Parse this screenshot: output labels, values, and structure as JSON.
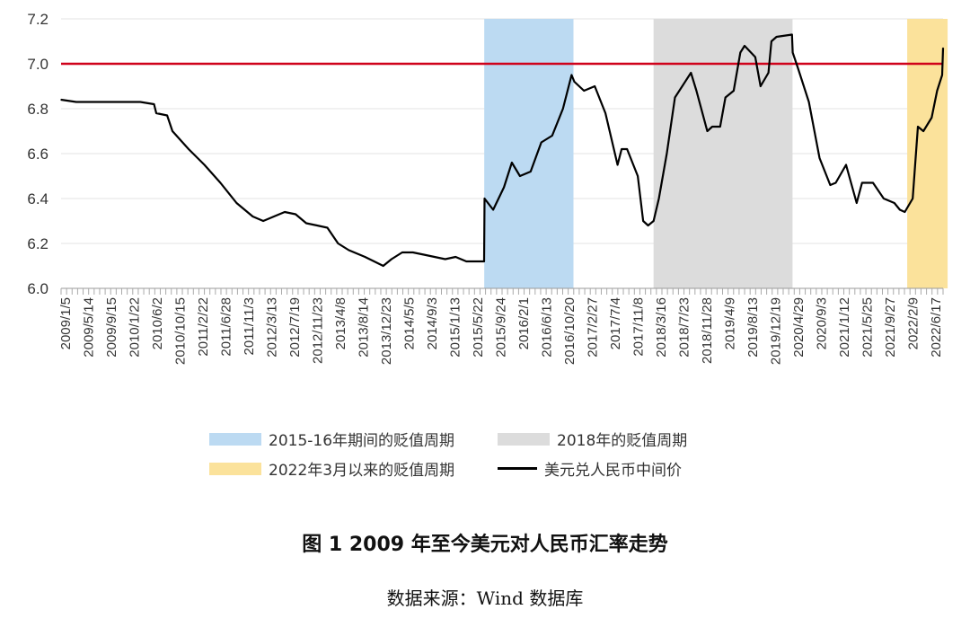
{
  "chart_data": {
    "type": "line",
    "title": "",
    "xlabel": "",
    "ylabel": "",
    "ylim": [
      6.0,
      7.2
    ],
    "y_ticks": [
      "6.0",
      "6.2",
      "6.4",
      "6.6",
      "6.8",
      "7.0",
      "7.2"
    ],
    "x_tick_labels": [
      "2009/1/5",
      "2009/5/14",
      "2009/9/15",
      "2010/1/22",
      "2010/6/2",
      "2010/10/15",
      "2011/2/22",
      "2011/6/28",
      "2011/11/3",
      "2012/3/13",
      "2012/7/19",
      "2012/11/23",
      "2013/4/8",
      "2013/8/14",
      "2013/12/23",
      "2014/5/5",
      "2014/9/3",
      "2015/1/13",
      "2015/5/22",
      "2015/9/24",
      "2016/2/1",
      "2016/6/13",
      "2016/10/20",
      "2017/2/27",
      "2017/7/4",
      "2017/11/8",
      "2018/3/16",
      "2018/7/23",
      "2018/11/28",
      "2019/4/9",
      "2019/8/13",
      "2019/12/19",
      "2020/4/29",
      "2020/9/3",
      "2021/1/12",
      "2021/5/25",
      "2021/9/27",
      "2022/2/9",
      "2022/6/17"
    ],
    "grid": true,
    "reference_line": {
      "value": 7.0,
      "color": "#d0021b"
    },
    "shaded_periods": [
      {
        "name": "2015-16年期间的贬值周期",
        "start": "2015/8/11",
        "end": "2016/12/31",
        "color": "#bcdaf2"
      },
      {
        "name": "2018年的贬值周期",
        "start": "2018/4/1",
        "end": "2020/5/31",
        "color": "#dcdcdc"
      },
      {
        "name": "2022年3月以来的贬值周期",
        "start": "2022/3/15",
        "end": "2022/10/31",
        "color": "#fbe29b"
      }
    ],
    "series": [
      {
        "name": "美元兑人民币中间价",
        "color": "#000000",
        "x": [
          "2009/1/5",
          "2009/4/1",
          "2009/7/1",
          "2009/10/1",
          "2010/1/1",
          "2010/4/1",
          "2010/6/18",
          "2010/7/1",
          "2010/9/1",
          "2010/10/1",
          "2011/1/1",
          "2011/4/1",
          "2011/7/1",
          "2011/10/1",
          "2012/1/1",
          "2012/3/1",
          "2012/5/1",
          "2012/7/1",
          "2012/9/1",
          "2012/11/1",
          "2013/1/1",
          "2013/3/1",
          "2013/5/1",
          "2013/7/1",
          "2013/10/1",
          "2014/1/13",
          "2014/3/1",
          "2014/5/1",
          "2014/7/1",
          "2014/9/1",
          "2014/11/1",
          "2015/1/1",
          "2015/3/1",
          "2015/5/1",
          "2015/8/10",
          "2015/8/13",
          "2015/9/1",
          "2015/10/1",
          "2015/12/1",
          "2016/1/15",
          "2016/3/1",
          "2016/5/1",
          "2016/7/1",
          "2016/9/1",
          "2016/11/1",
          "2016/12/20",
          "2017/1/5",
          "2017/3/1",
          "2017/5/1",
          "2017/7/1",
          "2017/9/8",
          "2017/10/1",
          "2017/11/1",
          "2018/1/1",
          "2018/2/1",
          "2018/3/1",
          "2018/4/1",
          "2018/5/1",
          "2018/6/15",
          "2018/8/1",
          "2018/10/31",
          "2018/12/1",
          "2019/2/1",
          "2019/3/1",
          "2019/4/15",
          "2019/5/15",
          "2019/7/1",
          "2019/8/8",
          "2019/9/1",
          "2019/11/1",
          "2019/12/1",
          "2020/1/15",
          "2020/2/1",
          "2020/3/1",
          "2020/5/28",
          "2020/6/1",
          "2020/7/1",
          "2020/9/1",
          "2020/11/1",
          "2021/1/1",
          "2021/2/1",
          "2021/4/1",
          "2021/5/31",
          "2021/7/1",
          "2021/9/1",
          "2021/11/1",
          "2022/1/1",
          "2022/2/1",
          "2022/3/1",
          "2022/4/15",
          "2022/5/15",
          "2022/6/15",
          "2022/8/1",
          "2022/9/1",
          "2022/9/30",
          "2022/10/5"
        ],
        "values": [
          6.84,
          6.83,
          6.83,
          6.83,
          6.83,
          6.83,
          6.82,
          6.78,
          6.77,
          6.7,
          6.62,
          6.55,
          6.47,
          6.38,
          6.32,
          6.3,
          6.32,
          6.34,
          6.33,
          6.29,
          6.28,
          6.27,
          6.2,
          6.17,
          6.14,
          6.1,
          6.13,
          6.16,
          6.16,
          6.15,
          6.14,
          6.13,
          6.14,
          6.12,
          6.12,
          6.4,
          6.38,
          6.35,
          6.45,
          6.56,
          6.5,
          6.52,
          6.65,
          6.68,
          6.8,
          6.95,
          6.92,
          6.88,
          6.9,
          6.78,
          6.55,
          6.62,
          6.62,
          6.5,
          6.3,
          6.28,
          6.3,
          6.4,
          6.6,
          6.85,
          6.96,
          6.88,
          6.7,
          6.72,
          6.72,
          6.85,
          6.88,
          7.05,
          7.08,
          7.03,
          6.9,
          6.96,
          7.1,
          7.12,
          7.13,
          7.05,
          6.98,
          6.83,
          6.58,
          6.46,
          6.47,
          6.55,
          6.38,
          6.47,
          6.47,
          6.4,
          6.38,
          6.35,
          6.34,
          6.4,
          6.72,
          6.7,
          6.76,
          6.88,
          6.95,
          7.07
        ]
      }
    ]
  },
  "legend": {
    "item1": "2015-16年期间的贬值周期",
    "item2": "2018年的贬值周期",
    "item3": "2022年3月以来的贬值周期",
    "item4": "美元兑人民币中间价"
  },
  "figure_title": "图 1  2009 年至今美元对人民币汇率走势",
  "source": "数据来源：Wind 数据库"
}
